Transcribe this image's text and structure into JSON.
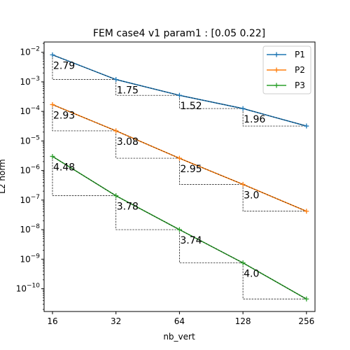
{
  "chart_data": {
    "type": "line",
    "title": "FEM case4 v1 param1 : [0.05 0.22]",
    "xlabel": "nb_vert",
    "ylabel": "L2 norm",
    "xscale": "log2",
    "yscale": "log10",
    "xlim": [
      14.6,
      281
    ],
    "ylim": [
      1.7e-11,
      0.0223
    ],
    "grid": false,
    "legend_position": "top-right",
    "x_ticks": [
      {
        "value": 16,
        "label": "16"
      },
      {
        "value": 32,
        "label": "32"
      },
      {
        "value": 64,
        "label": "64"
      },
      {
        "value": 128,
        "label": "128"
      },
      {
        "value": 256,
        "label": "256"
      }
    ],
    "y_ticks": [
      {
        "value": 1e-10,
        "base": "10",
        "exp": "−10"
      },
      {
        "value": 1e-09,
        "base": "10",
        "exp": "−9"
      },
      {
        "value": 1e-08,
        "base": "10",
        "exp": "−8"
      },
      {
        "value": 1e-07,
        "base": "10",
        "exp": "−7"
      },
      {
        "value": 1e-06,
        "base": "10",
        "exp": "−6"
      },
      {
        "value": 1e-05,
        "base": "10",
        "exp": "−5"
      },
      {
        "value": 0.0001,
        "base": "10",
        "exp": "−4"
      },
      {
        "value": 0.001,
        "base": "10",
        "exp": "−3"
      },
      {
        "value": 0.01,
        "base": "10",
        "exp": "−2"
      }
    ],
    "x": [
      16,
      32,
      64,
      128,
      256
    ],
    "series": [
      {
        "name": "P1",
        "color": "#1f77b4",
        "values": [
          0.0082,
          0.0012,
          0.00035,
          0.000125,
          3.2e-05
        ],
        "rates": [
          "2.79",
          "1.75",
          "1.52",
          "1.96"
        ]
      },
      {
        "name": "P2",
        "color": "#ff7f0e",
        "values": [
          0.00017,
          2.2e-05,
          2.6e-06,
          3.4e-07,
          4.2e-08
        ],
        "rates": [
          "2.93",
          "3.08",
          "2.95",
          "3.0"
        ]
      },
      {
        "name": "P3",
        "color": "#2ca02c",
        "values": [
          3e-06,
          1.4e-07,
          1e-08,
          7.5e-10,
          4.5e-11
        ],
        "rates": [
          "4.48",
          "3.78",
          "3.74",
          "4.0"
        ]
      }
    ]
  }
}
